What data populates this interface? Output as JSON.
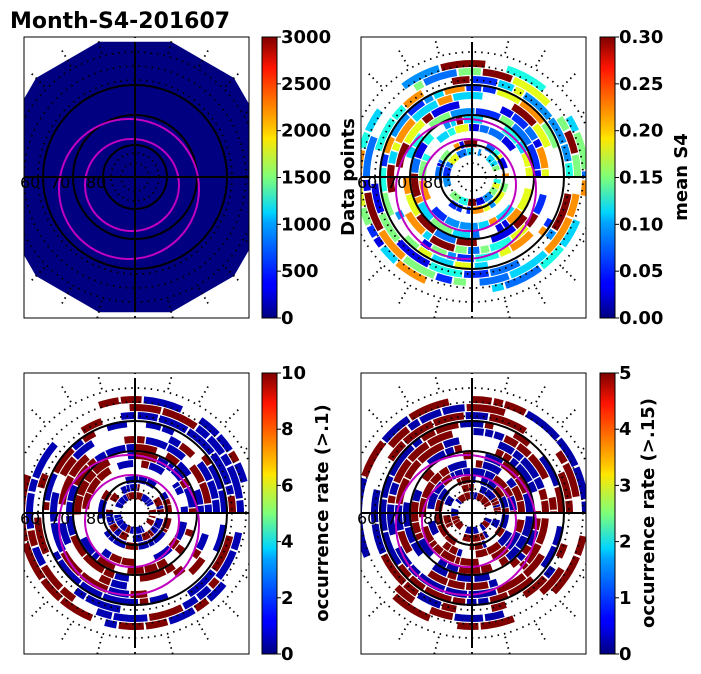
{
  "figure": {
    "title": "Month-S4-201607"
  },
  "chart_data": [
    {
      "type": "heatmap",
      "projection": "polar",
      "colormap": "jet",
      "title": "Month-S4-201607",
      "lat_labels": [
        "60",
        "70",
        "80"
      ],
      "colorbar": {
        "label": "Data points",
        "range": [
          0,
          3000
        ],
        "ticks": [
          "0",
          "500",
          "1000",
          "1500",
          "2000",
          "2500",
          "3000"
        ]
      },
      "fill": "uniform",
      "fill_value": 0,
      "grid": true
    },
    {
      "type": "heatmap",
      "projection": "polar",
      "colormap": "jet",
      "lat_labels": [
        "60",
        "70",
        "80"
      ],
      "colorbar": {
        "label": "mean S4",
        "range": [
          0.0,
          0.3
        ],
        "ticks": [
          "0.00",
          "0.05",
          "0.10",
          "0.15",
          "0.20",
          "0.25",
          "0.30"
        ]
      },
      "fill": "mixed",
      "cell_value_distribution": [
        0.03,
        0.05,
        0.07,
        0.08,
        0.1,
        0.12,
        0.15,
        0.18,
        0.22,
        0.3
      ],
      "grid": true
    },
    {
      "type": "heatmap",
      "projection": "polar",
      "colormap": "jet",
      "lat_labels": [
        "60",
        "70",
        "80"
      ],
      "colorbar": {
        "label": "occurrence rate (>.1)",
        "range": [
          0,
          10
        ],
        "ticks": [
          "0",
          "2",
          "4",
          "6",
          "8",
          "10"
        ]
      },
      "fill": "binary",
      "cell_value_distribution": [
        0.5,
        10
      ],
      "grid": true
    },
    {
      "type": "heatmap",
      "projection": "polar",
      "colormap": "jet",
      "lat_labels": [
        "60",
        "70",
        "80"
      ],
      "colorbar": {
        "label": "occurrence rate (>.15)",
        "range": [
          0,
          5
        ],
        "ticks": [
          "0",
          "1",
          "2",
          "3",
          "4",
          "5"
        ]
      },
      "fill": "binary",
      "cell_value_distribution": [
        0.2,
        5
      ],
      "grid": true
    }
  ]
}
